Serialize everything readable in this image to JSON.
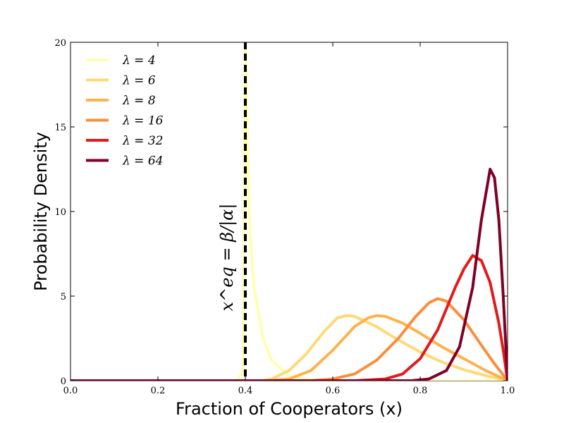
{
  "chart_data": {
    "type": "line",
    "xlabel": "Fraction of Cooperators (x)",
    "ylabel": "Probability Density",
    "xlim": [
      0.0,
      1.0
    ],
    "ylim": [
      0,
      20
    ],
    "x_ticks": [
      "0.0",
      "0.2",
      "0.4",
      "0.6",
      "0.8",
      "1.0"
    ],
    "y_ticks": [
      "0",
      "5",
      "10",
      "15",
      "20"
    ],
    "legend_placement": "top-left",
    "grid": false,
    "reference_line": {
      "x": 0.4,
      "label": "x^eq = β/|α|",
      "style": "dashed",
      "color": "#000000"
    },
    "series": [
      {
        "name": "λ = 4",
        "color": "#ffffb2",
        "points": [
          [
            0.0,
            0
          ],
          [
            0.38,
            0
          ],
          [
            0.395,
            0.5
          ],
          [
            0.4,
            20
          ],
          [
            0.405,
            14
          ],
          [
            0.41,
            9
          ],
          [
            0.42,
            5.5
          ],
          [
            0.44,
            2.5
          ],
          [
            0.46,
            1.2
          ],
          [
            0.5,
            0.3
          ],
          [
            0.55,
            0.05
          ],
          [
            0.6,
            0
          ],
          [
            1.0,
            0
          ]
        ]
      },
      {
        "name": "λ = 6",
        "color": "#fed976",
        "points": [
          [
            0.0,
            0
          ],
          [
            0.44,
            0
          ],
          [
            0.46,
            0.1
          ],
          [
            0.5,
            0.6
          ],
          [
            0.54,
            1.6
          ],
          [
            0.58,
            2.9
          ],
          [
            0.61,
            3.7
          ],
          [
            0.63,
            3.85
          ],
          [
            0.65,
            3.8
          ],
          [
            0.7,
            3.2
          ],
          [
            0.75,
            2.4
          ],
          [
            0.8,
            1.7
          ],
          [
            0.85,
            1.1
          ],
          [
            0.9,
            0.65
          ],
          [
            0.95,
            0.3
          ],
          [
            1.0,
            0
          ]
        ]
      },
      {
        "name": "λ = 8",
        "color": "#feb24c",
        "points": [
          [
            0.0,
            0
          ],
          [
            0.45,
            0
          ],
          [
            0.5,
            0.1
          ],
          [
            0.55,
            0.6
          ],
          [
            0.6,
            1.8
          ],
          [
            0.65,
            3.2
          ],
          [
            0.68,
            3.7
          ],
          [
            0.7,
            3.85
          ],
          [
            0.72,
            3.8
          ],
          [
            0.76,
            3.4
          ],
          [
            0.8,
            2.8
          ],
          [
            0.85,
            2.0
          ],
          [
            0.9,
            1.3
          ],
          [
            0.95,
            0.6
          ],
          [
            1.0,
            0
          ]
        ]
      },
      {
        "name": "λ = 16",
        "color": "#fd8d3c",
        "points": [
          [
            0.0,
            0
          ],
          [
            0.55,
            0
          ],
          [
            0.6,
            0.1
          ],
          [
            0.65,
            0.4
          ],
          [
            0.7,
            1.2
          ],
          [
            0.75,
            2.5
          ],
          [
            0.79,
            3.8
          ],
          [
            0.82,
            4.6
          ],
          [
            0.84,
            4.85
          ],
          [
            0.86,
            4.7
          ],
          [
            0.9,
            3.6
          ],
          [
            0.94,
            2.1
          ],
          [
            0.97,
            1.0
          ],
          [
            1.0,
            0
          ]
        ]
      },
      {
        "name": "λ = 32",
        "color": "#e31a1c",
        "points": [
          [
            0.0,
            0
          ],
          [
            0.65,
            0
          ],
          [
            0.72,
            0.1
          ],
          [
            0.76,
            0.4
          ],
          [
            0.8,
            1.3
          ],
          [
            0.84,
            3.0
          ],
          [
            0.88,
            5.5
          ],
          [
            0.9,
            6.6
          ],
          [
            0.92,
            7.4
          ],
          [
            0.94,
            7.1
          ],
          [
            0.96,
            5.8
          ],
          [
            0.98,
            3.4
          ],
          [
            0.99,
            1.8
          ],
          [
            1.0,
            0
          ]
        ]
      },
      {
        "name": "λ = 64",
        "color": "#800026",
        "points": [
          [
            0.0,
            0
          ],
          [
            0.78,
            0
          ],
          [
            0.82,
            0.1
          ],
          [
            0.86,
            0.6
          ],
          [
            0.89,
            2.0
          ],
          [
            0.92,
            5.5
          ],
          [
            0.94,
            9.5
          ],
          [
            0.96,
            12.5
          ],
          [
            0.97,
            12.0
          ],
          [
            0.98,
            9.5
          ],
          [
            0.99,
            5.0
          ],
          [
            0.995,
            2.5
          ],
          [
            1.0,
            0
          ]
        ]
      }
    ]
  }
}
